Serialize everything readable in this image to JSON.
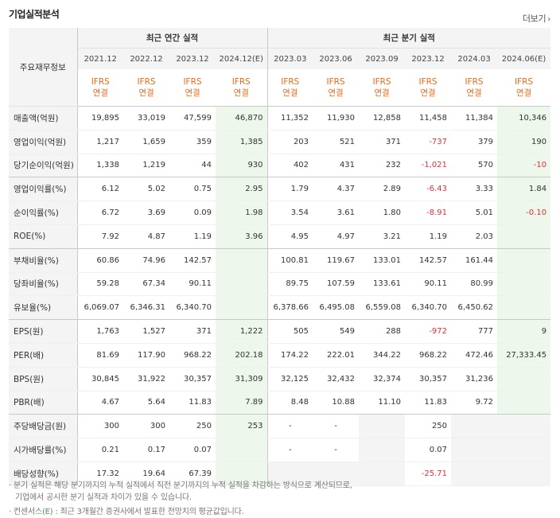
{
  "title": "기업실적분석",
  "more_label": "더보기",
  "more_icon": "chevron-right-icon",
  "header": {
    "row_label": "주요재무정보",
    "annual_group": "최근 연간 실적",
    "quarter_group": "최근 분기 실적",
    "periods": [
      "2021.12",
      "2022.12",
      "2023.12",
      "2024.12(E)",
      "2023.03",
      "2023.06",
      "2023.09",
      "2023.12",
      "2024.03",
      "2024.06(E)"
    ],
    "ifrs": [
      "IFRS",
      "IFRS",
      "IFRS",
      "IFRS",
      "IFRS",
      "IFRS",
      "IFRS",
      "IFRS",
      "IFRS",
      "IFRS"
    ],
    "basis": [
      "연결",
      "연결",
      "연결",
      "연결",
      "연결",
      "연결",
      "연결",
      "연결",
      "연결",
      "연결"
    ]
  },
  "rows": [
    {
      "label": "매출액(억원)",
      "values": [
        "19,895",
        "33,019",
        "47,599",
        "46,870",
        "11,352",
        "11,930",
        "12,858",
        "11,458",
        "11,384",
        "10,346"
      ]
    },
    {
      "label": "영업이익(억원)",
      "values": [
        "1,217",
        "1,659",
        "359",
        "1,385",
        "203",
        "521",
        "371",
        "-737",
        "379",
        "190"
      ]
    },
    {
      "label": "당기순이익(억원)",
      "values": [
        "1,338",
        "1,219",
        "44",
        "930",
        "402",
        "431",
        "232",
        "-1,021",
        "570",
        "-10"
      ]
    },
    {
      "label": "영업이익률(%)",
      "values": [
        "6.12",
        "5.02",
        "0.75",
        "2.95",
        "1.79",
        "4.37",
        "2.89",
        "-6.43",
        "3.33",
        "1.84"
      ]
    },
    {
      "label": "순이익률(%)",
      "values": [
        "6.72",
        "3.69",
        "0.09",
        "1.98",
        "3.54",
        "3.61",
        "1.80",
        "-8.91",
        "5.01",
        "-0.10"
      ]
    },
    {
      "label": "ROE(%)",
      "values": [
        "7.92",
        "4.87",
        "1.19",
        "3.96",
        "4.95",
        "4.97",
        "3.21",
        "1.19",
        "2.03",
        ""
      ]
    },
    {
      "label": "부채비율(%)",
      "values": [
        "60.86",
        "74.96",
        "142.57",
        "",
        "100.81",
        "119.67",
        "133.01",
        "142.57",
        "161.44",
        ""
      ]
    },
    {
      "label": "당좌비율(%)",
      "values": [
        "59.28",
        "67.34",
        "90.11",
        "",
        "89.75",
        "107.59",
        "133.61",
        "90.11",
        "80.99",
        ""
      ]
    },
    {
      "label": "유보율(%)",
      "values": [
        "6,069.07",
        "6,346.31",
        "6,340.70",
        "",
        "6,378.66",
        "6,495.08",
        "6,559.08",
        "6,340.70",
        "6,450.62",
        ""
      ]
    },
    {
      "label": "EPS(원)",
      "values": [
        "1,763",
        "1,527",
        "371",
        "1,222",
        "505",
        "549",
        "288",
        "-972",
        "777",
        "9"
      ]
    },
    {
      "label": "PER(배)",
      "values": [
        "81.69",
        "117.90",
        "968.22",
        "202.18",
        "174.22",
        "222.01",
        "344.22",
        "968.22",
        "472.46",
        "27,333.45"
      ]
    },
    {
      "label": "BPS(원)",
      "values": [
        "30,845",
        "31,922",
        "30,357",
        "31,309",
        "32,125",
        "32,432",
        "32,374",
        "30,357",
        "31,236",
        ""
      ]
    },
    {
      "label": "PBR(배)",
      "values": [
        "4.67",
        "5.64",
        "11.83",
        "7.89",
        "8.48",
        "10.88",
        "11.10",
        "11.83",
        "9.72",
        ""
      ]
    },
    {
      "label": "주당배당금(원)",
      "values": [
        "300",
        "300",
        "250",
        "253",
        "-",
        "-",
        "",
        "250",
        "",
        ""
      ]
    },
    {
      "label": "시가배당률(%)",
      "values": [
        "0.21",
        "0.17",
        "0.07",
        "",
        "-",
        "-",
        "",
        "0.07",
        "",
        ""
      ]
    },
    {
      "label": "배당성향(%)",
      "values": [
        "17.32",
        "19.64",
        "67.39",
        "",
        "",
        "",
        "",
        "-25.71",
        "",
        ""
      ]
    }
  ],
  "notes": {
    "line1": "분기 실적은 해당 분기까지의 누적 실적에서 직전 분기까지의 누적 실적을 차감하는 방식으로 계산되므로,",
    "line2": "기업에서 공시한 분기 실적과 차이가 있을 수 있습니다.",
    "line3_prefix": "컨센서스(",
    "line3_e": "E",
    "line3_suffix": ") : 최근 3개월간 증권사에서 발표한 전망치의 평균값입니다."
  }
}
